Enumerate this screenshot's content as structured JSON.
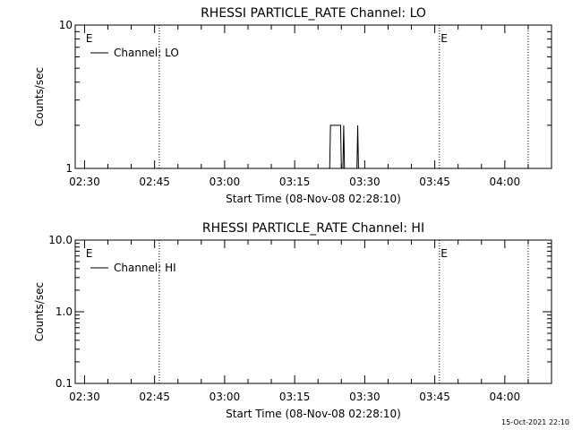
{
  "timestamp": "15-Oct-2021 22:10",
  "chart_data": [
    {
      "type": "line",
      "title": "RHESSI PARTICLE_RATE Channel: LO",
      "xlabel": "Start Time (08-Nov-08 02:28:10)",
      "ylabel": "Counts/sec",
      "yscale": "log",
      "xlim": [
        "02:28",
        "04:10"
      ],
      "ylim": [
        1,
        10
      ],
      "xticks": [
        "02:30",
        "02:45",
        "03:00",
        "03:15",
        "03:30",
        "03:45",
        "04:00"
      ],
      "yticks": [
        "1",
        "10"
      ],
      "legend": "top-left",
      "series": [
        {
          "name": "Channel: LO",
          "color": "#000000",
          "points": [
            [
              "03:22:30",
              1
            ],
            [
              "03:22:40",
              2
            ],
            [
              "03:24:50",
              2
            ],
            [
              "03:25:00",
              1
            ],
            [
              "03:25:20",
              1
            ],
            [
              "03:25:30",
              2
            ],
            [
              "03:25:40",
              1
            ],
            [
              "03:28:20",
              1
            ],
            [
              "03:28:30",
              2
            ],
            [
              "03:28:40",
              1
            ]
          ]
        }
      ],
      "markers": [
        {
          "label": "E",
          "time": "02:31"
        },
        {
          "label": "E",
          "time": "03:47"
        }
      ],
      "vlines": [
        "02:46",
        "03:46",
        "04:05"
      ]
    },
    {
      "type": "line",
      "title": "RHESSI PARTICLE_RATE Channel: HI",
      "xlabel": "Start Time (08-Nov-08 02:28:10)",
      "ylabel": "Counts/sec",
      "yscale": "log",
      "xlim": [
        "02:28",
        "04:10"
      ],
      "ylim": [
        0.1,
        10
      ],
      "xticks": [
        "02:30",
        "02:45",
        "03:00",
        "03:15",
        "03:30",
        "03:45",
        "04:00"
      ],
      "yticks": [
        "0.1",
        "1.0",
        "10.0"
      ],
      "legend": "top-left",
      "series": [
        {
          "name": "Channel: HI",
          "color": "#000000",
          "points": []
        }
      ],
      "markers": [
        {
          "label": "E",
          "time": "02:31"
        },
        {
          "label": "E",
          "time": "03:47"
        }
      ],
      "vlines": [
        "02:46",
        "03:46",
        "04:05"
      ]
    }
  ]
}
